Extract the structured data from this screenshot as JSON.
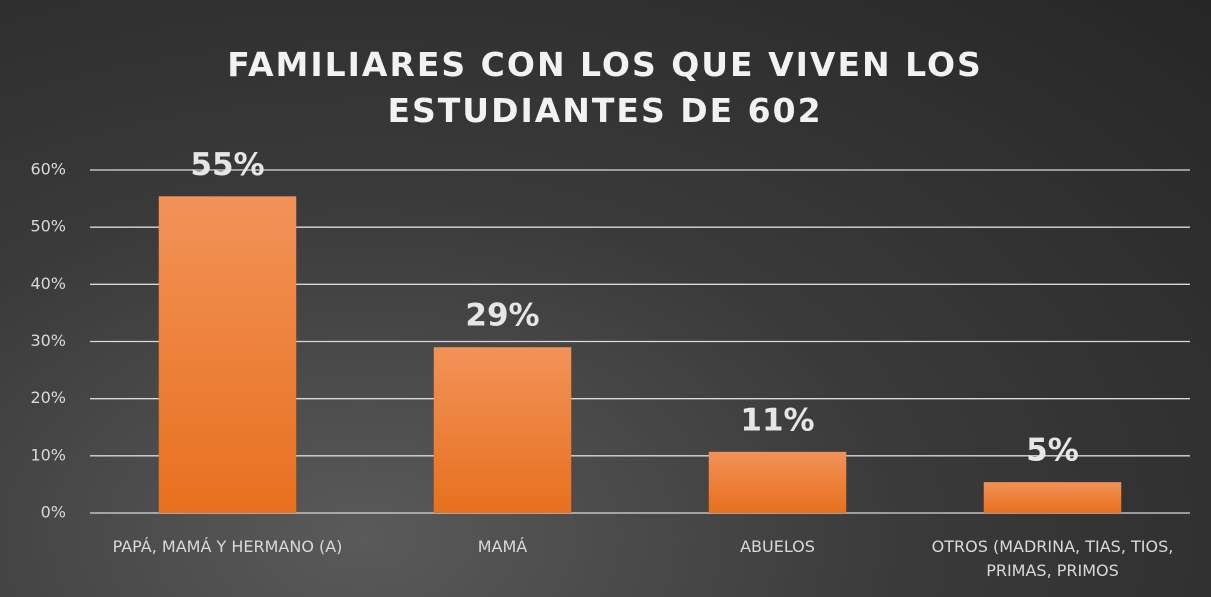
{
  "chart_data": {
    "type": "bar",
    "title": "FAMILIARES CON LOS QUE VIVEN LOS ESTUDIANTES DE 602",
    "categories": [
      "PAPÁ, MAMÁ Y HERMANO (A)",
      "MAMÁ",
      "ABUELOS",
      "OTROS (MADRINA, TIAS, TIOS, PRIMAS, PRIMOS"
    ],
    "values": [
      55.4,
      29,
      10.7,
      5.4
    ],
    "value_labels": [
      "55%",
      "29%",
      "11%",
      "5%"
    ],
    "color": "#f07c2a",
    "ylim": [
      0,
      60
    ],
    "yticks": [
      {
        "value": 0,
        "label": "0%"
      },
      {
        "value": 10,
        "label": "10%"
      },
      {
        "value": 20,
        "label": "20%"
      },
      {
        "value": 30,
        "label": "30%"
      },
      {
        "value": 40,
        "label": "40%"
      },
      {
        "value": 50,
        "label": "50%"
      },
      {
        "value": 60,
        "label": "60%"
      }
    ],
    "grid": true
  }
}
